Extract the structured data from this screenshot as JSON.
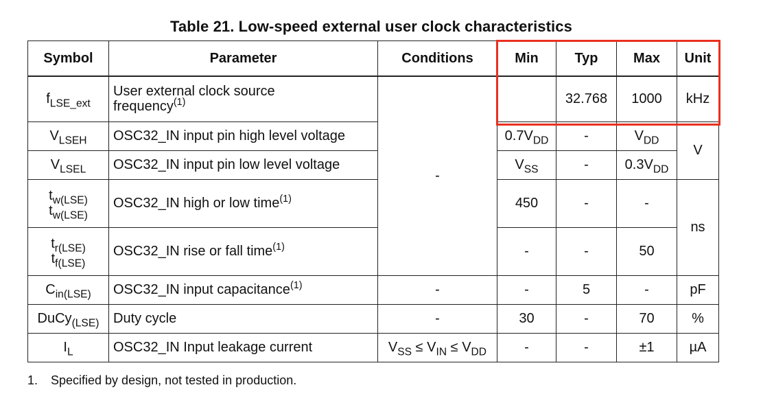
{
  "title": "Table 21. Low-speed external user clock characteristics",
  "headers": {
    "symbol": "Symbol",
    "parameter": "Parameter",
    "conditions": "Conditions",
    "min": "Min",
    "typ": "Typ",
    "max": "Max",
    "unit": "Unit"
  },
  "rows": {
    "flse": {
      "symbol_main": "f",
      "symbol_sub": "LSE_ext",
      "param_line1": "User external clock source",
      "param_line2": "frequency",
      "param_note": "(1)",
      "min": "",
      "typ": "32.768",
      "max": "1000",
      "unit": "kHz"
    },
    "vlseh": {
      "symbol_main": "V",
      "symbol_sub": "LSEH",
      "param": "OSC32_IN input pin high level voltage",
      "min_main": "0.7V",
      "min_sub": "DD",
      "typ": "-",
      "max_main": "V",
      "max_sub": "DD"
    },
    "vlsel": {
      "symbol_main": "V",
      "symbol_sub": "LSEL",
      "param": "OSC32_IN input pin low level voltage",
      "min_main": "V",
      "min_sub": "SS",
      "typ": "-",
      "max_main": "0.3V",
      "max_sub": "DD"
    },
    "voltage_unit": "V",
    "shared_condition": "-",
    "tw": {
      "sym1_main": "t",
      "sym1_sub": "w(LSE)",
      "sym2_main": "t",
      "sym2_sub": "w(LSE)",
      "param": "OSC32_IN high or low time",
      "param_note": "(1)",
      "min": "450",
      "typ": "-",
      "max": "-"
    },
    "tr": {
      "sym1_main": "t",
      "sym1_sub": "r(LSE)",
      "sym2_main": "t",
      "sym2_sub": "f(LSE)",
      "param": "OSC32_IN rise or fall time",
      "param_note": "(1)",
      "min": "-",
      "typ": "-",
      "max": "50"
    },
    "time_unit": "ns",
    "cin": {
      "symbol_main": "C",
      "symbol_sub": "in(LSE)",
      "param": "OSC32_IN input capacitance",
      "param_note": "(1)",
      "cond": "-",
      "min": "-",
      "typ": "5",
      "max": "-",
      "unit": "pF"
    },
    "ducy": {
      "symbol_main": "DuCy",
      "symbol_sub": "(LSE)",
      "param": "Duty cycle",
      "cond": "-",
      "min": "30",
      "typ": "-",
      "max": "70",
      "unit": "%"
    },
    "il": {
      "symbol_main": "I",
      "symbol_sub": "L",
      "param": "OSC32_IN Input leakage current",
      "cond_v1": "V",
      "cond_s1": "SS",
      "cond_le1": " ≤ ",
      "cond_v2": "V",
      "cond_s2": "IN",
      "cond_le2": " ≤ ",
      "cond_v3": "V",
      "cond_s3": "DD",
      "min": "-",
      "typ": "-",
      "max": "±1",
      "unit": "µA"
    }
  },
  "footnote": {
    "number": "1.",
    "text": "Specified by design, not tested in production."
  },
  "colors": {
    "highlight": "#e8301f"
  }
}
